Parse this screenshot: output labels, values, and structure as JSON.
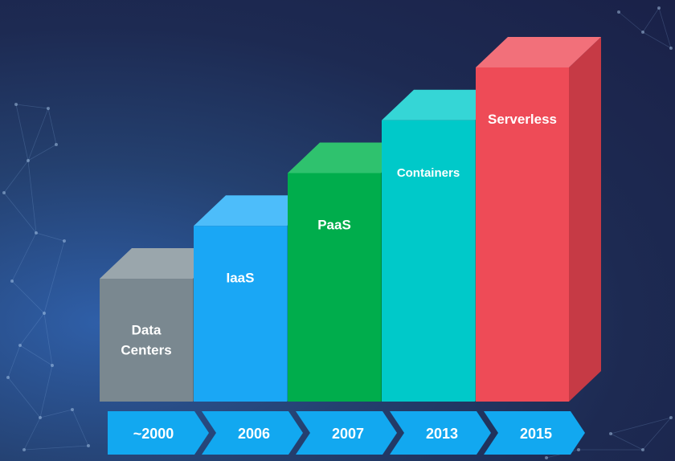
{
  "chart_data": {
    "type": "bar",
    "categories": [
      "~2000",
      "2006",
      "2007",
      "2013",
      "2015"
    ],
    "series_labels": [
      "Data Centers",
      "IaaS",
      "PaaS",
      "Containers",
      "Serverless"
    ],
    "values": [
      1,
      2,
      3,
      4,
      5
    ],
    "ylim": [
      0,
      5
    ],
    "grid": false,
    "colors": {
      "front": [
        "#7a8890",
        "#1aa7f5",
        "#00ad4c",
        "#00c9c9",
        "#ee4b57"
      ],
      "top": [
        "#9aa6ac",
        "#4dbdfa",
        "#2fc26e",
        "#35d6d6",
        "#f2707a"
      ],
      "side": [
        "#5f6c73",
        "#1388cc",
        "#008a3b",
        "#00a3a3",
        "#c63a45"
      ],
      "arrow": "#12a8f0"
    }
  }
}
